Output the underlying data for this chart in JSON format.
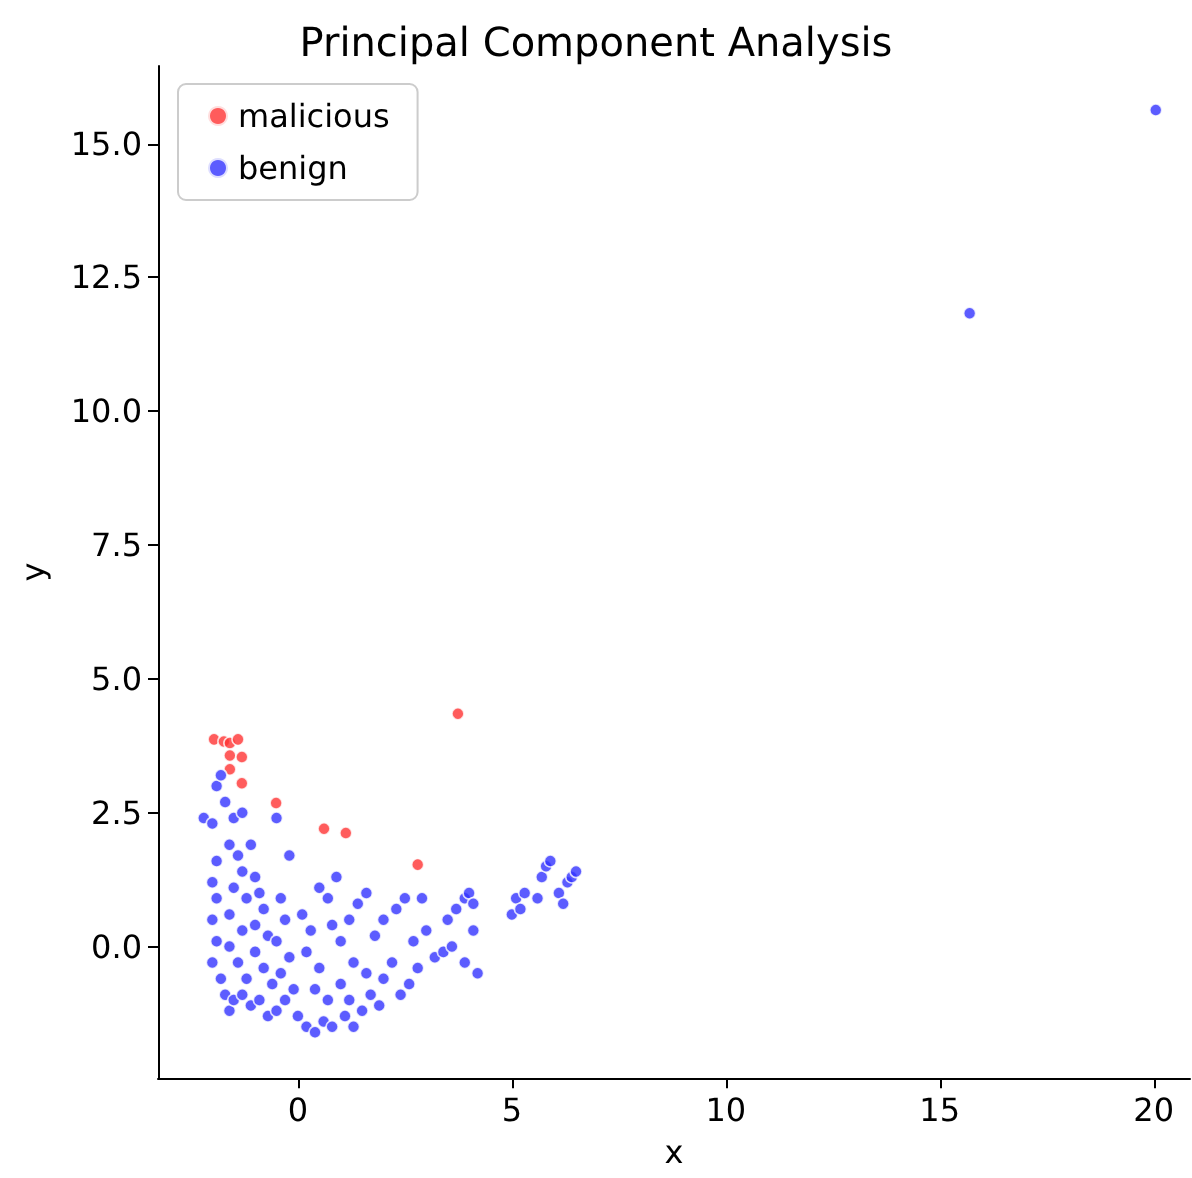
{
  "chart_data": {
    "type": "scatter",
    "title": "Principal Component Analysis",
    "xlabel": "x",
    "ylabel": "y",
    "xlim": [
      -3.27,
      20.85
    ],
    "ylim": [
      -2.46,
      16.45
    ],
    "xticks": [
      0,
      5,
      10,
      15,
      20
    ],
    "yticks": [
      {
        "value": 0,
        "label": "0.0"
      },
      2.5,
      {
        "value": 5,
        "label": "5.0"
      },
      7.5,
      {
        "value": 10,
        "label": "10.0"
      },
      12.5,
      {
        "value": 15,
        "label": "15.0"
      }
    ],
    "grid": false,
    "legend": "top left",
    "marker": "circle",
    "series": [
      {
        "name": "malicious",
        "color": "#ff3333",
        "x": [
          -1.96,
          -1.73,
          -1.59,
          -1.4,
          -1.59,
          -1.31,
          -1.59,
          -1.31,
          -0.51,
          0.61,
          1.12,
          2.8,
          3.74
        ],
        "values": [
          3.87,
          3.83,
          3.8,
          3.87,
          3.57,
          3.54,
          3.31,
          3.05,
          2.68,
          2.2,
          2.12,
          1.53,
          4.35
        ]
      },
      {
        "name": "benign",
        "color": "#3333ff",
        "x": [
          -2.2,
          -2.0,
          -1.9,
          -1.8,
          -1.7,
          -1.5,
          -1.3,
          -0.5,
          -1.9,
          -2.0,
          -1.9,
          -2.0,
          -1.9,
          -2.0,
          -1.8,
          -1.7,
          -1.6,
          -1.5,
          -1.6,
          -1.4,
          -1.3,
          -1.5,
          -1.2,
          -1.6,
          -1.3,
          -1.6,
          -1.4,
          -1.2,
          -1.3,
          -1.1,
          -1.0,
          -0.9,
          -0.8,
          -1.0,
          -0.7,
          -1.0,
          -0.8,
          -0.6,
          -0.9,
          -0.7,
          -0.5,
          -0.4,
          -0.3,
          -0.5,
          -0.2,
          -0.4,
          -0.1,
          -0.3,
          0.0,
          0.2,
          0.4,
          0.6,
          0.8,
          1.1,
          1.3,
          0.1,
          0.3,
          0.2,
          0.5,
          0.4,
          0.7,
          1.0,
          1.2,
          1.5,
          1.7,
          1.9,
          0.5,
          0.8,
          1.0,
          1.2,
          1.4,
          1.6,
          1.3,
          1.6,
          1.8,
          2.0,
          2.2,
          2.0,
          2.3,
          2.5,
          2.6,
          2.8,
          2.7,
          3.0,
          3.2,
          3.4,
          3.5,
          3.7,
          3.9,
          4.0,
          3.6,
          3.9,
          4.2,
          4.1,
          2.4,
          0.9,
          5.0,
          5.1,
          5.2,
          5.3,
          5.6,
          5.7,
          5.8,
          5.9,
          6.1,
          6.3,
          6.4,
          6.5,
          6.2,
          -0.2,
          -1.1,
          0.7,
          2.9,
          4.1,
          15.7,
          20.05
        ],
        "values": [
          2.4,
          2.3,
          3.0,
          3.2,
          2.7,
          2.4,
          2.5,
          2.4,
          1.6,
          1.2,
          0.9,
          0.5,
          0.1,
          -0.3,
          -0.6,
          -0.9,
          -1.2,
          -1.0,
          1.9,
          1.7,
          1.4,
          1.1,
          0.9,
          0.6,
          0.3,
          0.0,
          -0.3,
          -0.6,
          -0.9,
          -1.1,
          1.3,
          1.0,
          0.7,
          0.4,
          0.2,
          -0.1,
          -0.4,
          -0.7,
          -1.0,
          -1.3,
          -1.2,
          0.9,
          0.5,
          0.1,
          -0.2,
          -0.5,
          -0.8,
          -1.0,
          -1.3,
          -1.5,
          -1.6,
          -1.4,
          -1.5,
          -1.3,
          -1.5,
          0.6,
          0.3,
          -0.1,
          -0.4,
          -0.8,
          -1.0,
          -0.7,
          -1.0,
          -1.2,
          -0.9,
          -1.1,
          1.1,
          0.4,
          0.1,
          0.5,
          0.8,
          1.0,
          -0.3,
          -0.5,
          0.2,
          -0.6,
          -0.3,
          0.5,
          0.7,
          0.9,
          -0.7,
          -0.4,
          0.1,
          0.3,
          -0.2,
          -0.1,
          0.5,
          0.7,
          0.9,
          1.0,
          0.0,
          -0.3,
          -0.5,
          0.3,
          -0.9,
          1.3,
          0.6,
          0.9,
          0.7,
          1.0,
          0.9,
          1.3,
          1.5,
          1.6,
          1.0,
          1.2,
          1.3,
          1.4,
          0.8,
          1.7,
          1.9,
          0.9,
          0.9,
          0.8,
          11.83,
          15.63
        ]
      }
    ]
  }
}
